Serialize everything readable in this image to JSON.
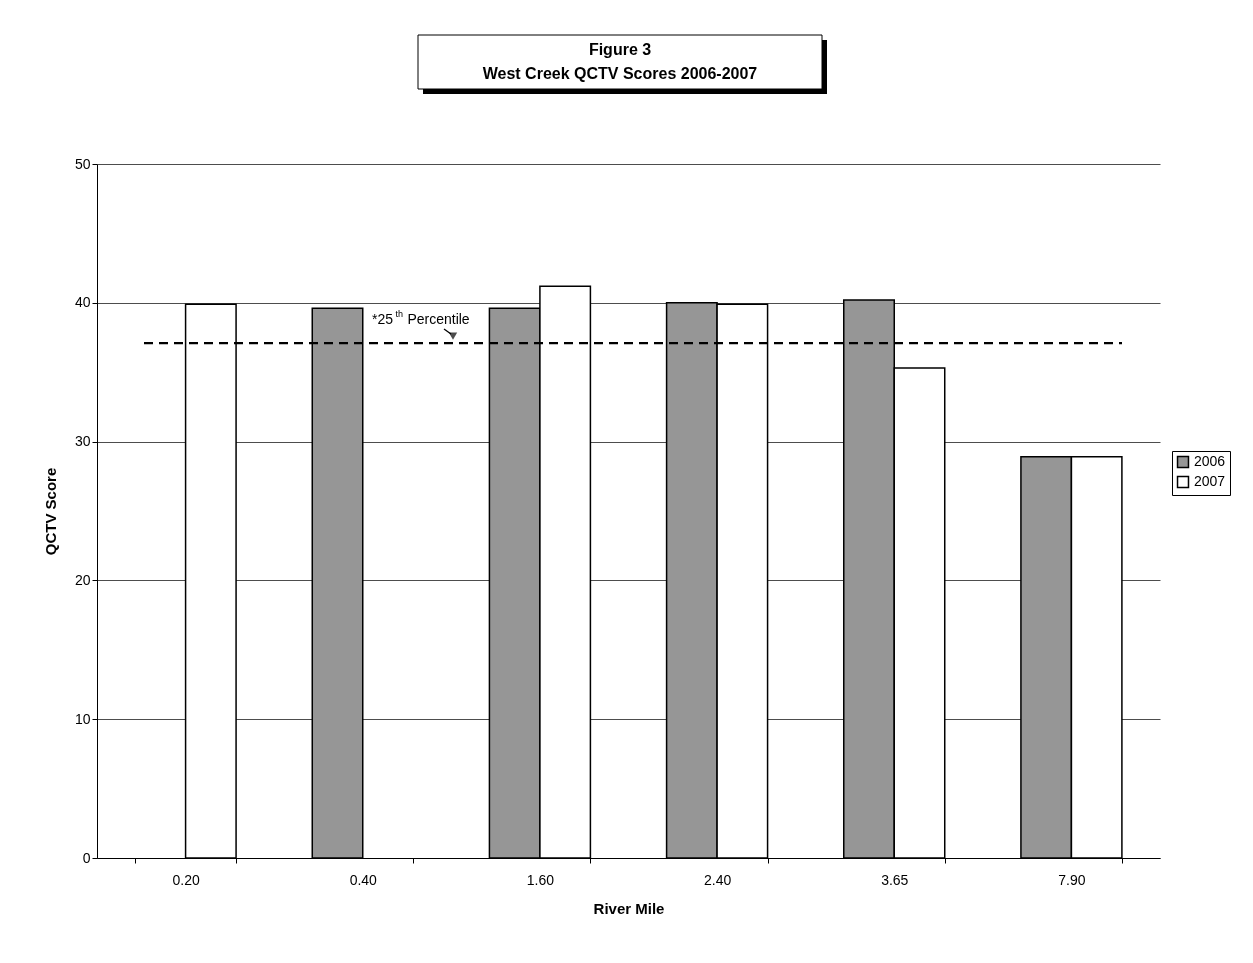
{
  "chart_data": {
    "type": "bar",
    "title": "Figure 3",
    "subtitle": "West Creek QCTV Scores 2006-2007",
    "xlabel": "River Mile",
    "ylabel": "QCTV Score",
    "categories": [
      "0.20",
      "0.40",
      "1.60",
      "2.40",
      "3.65",
      "7.90"
    ],
    "series": [
      {
        "name": "2006",
        "color": "#969696",
        "values": [
          null,
          39.6,
          39.6,
          40.0,
          40.2,
          28.9
        ]
      },
      {
        "name": "2007",
        "color": "#ffffff",
        "values": [
          39.9,
          null,
          41.2,
          39.9,
          35.3,
          28.9
        ]
      }
    ],
    "ylim": [
      0,
      50
    ],
    "yticks": [
      0,
      10,
      20,
      30,
      40,
      50
    ],
    "grid": "y",
    "legend": "right",
    "ref_lines": [
      {
        "axis": "y",
        "value": 37.1,
        "label": "*25$^{th}$ Percentile",
        "color": "#000000",
        "line_style": "dashed"
      }
    ]
  }
}
